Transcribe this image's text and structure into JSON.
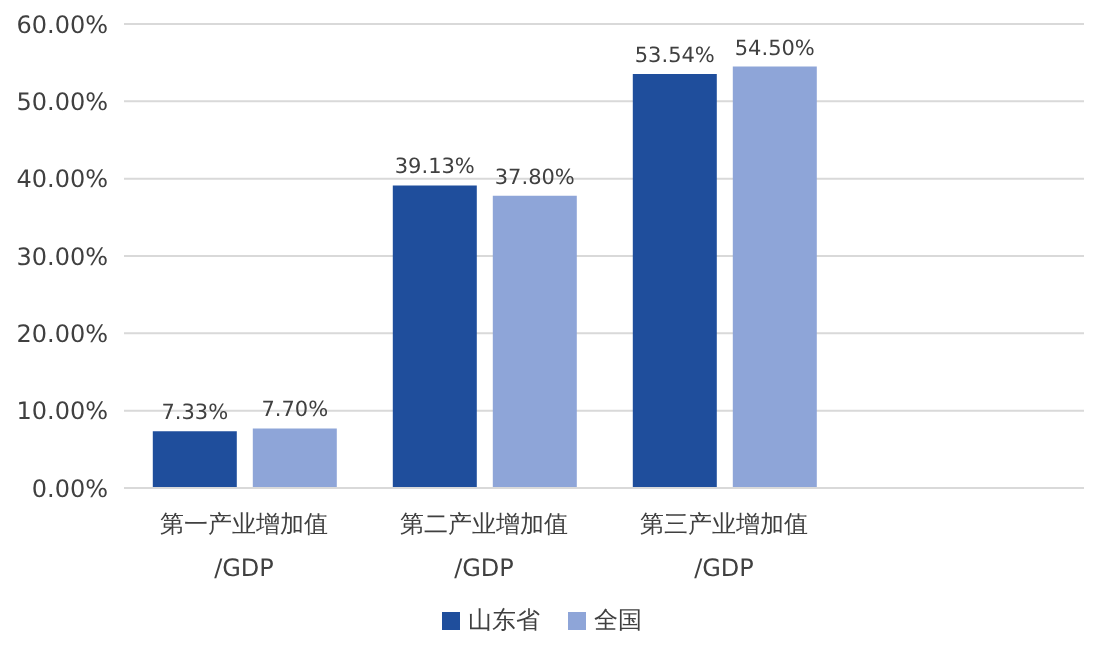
{
  "chart_data": {
    "type": "bar",
    "categories": [
      "第一产业增加值\n/GDP",
      "第二产业增加值\n/GDP",
      "第三产业增加值\n/GDP",
      null
    ],
    "series": [
      {
        "name": "山东省",
        "color": "#1f4e9c",
        "values": [
          7.33,
          39.13,
          53.54,
          null
        ],
        "value_labels": [
          "7.33%",
          "39.13%",
          "53.54%",
          null
        ]
      },
      {
        "name": "全国",
        "color": "#8ea5d8",
        "values": [
          7.7,
          37.8,
          54.5,
          null
        ],
        "value_labels": [
          "7.70%",
          "37.80%",
          "54.50%",
          null
        ]
      }
    ],
    "ylim": [
      0,
      60
    ],
    "yticks": [
      {
        "value": 0,
        "label": "0.00%"
      },
      {
        "value": 10,
        "label": "10.00%"
      },
      {
        "value": 20,
        "label": "20.00%"
      },
      {
        "value": 30,
        "label": "30.00%"
      },
      {
        "value": 40,
        "label": "40.00%"
      },
      {
        "value": 50,
        "label": "50.00%"
      },
      {
        "value": 60,
        "label": "60.00%"
      }
    ],
    "grid": "y",
    "legend": "bottom"
  }
}
